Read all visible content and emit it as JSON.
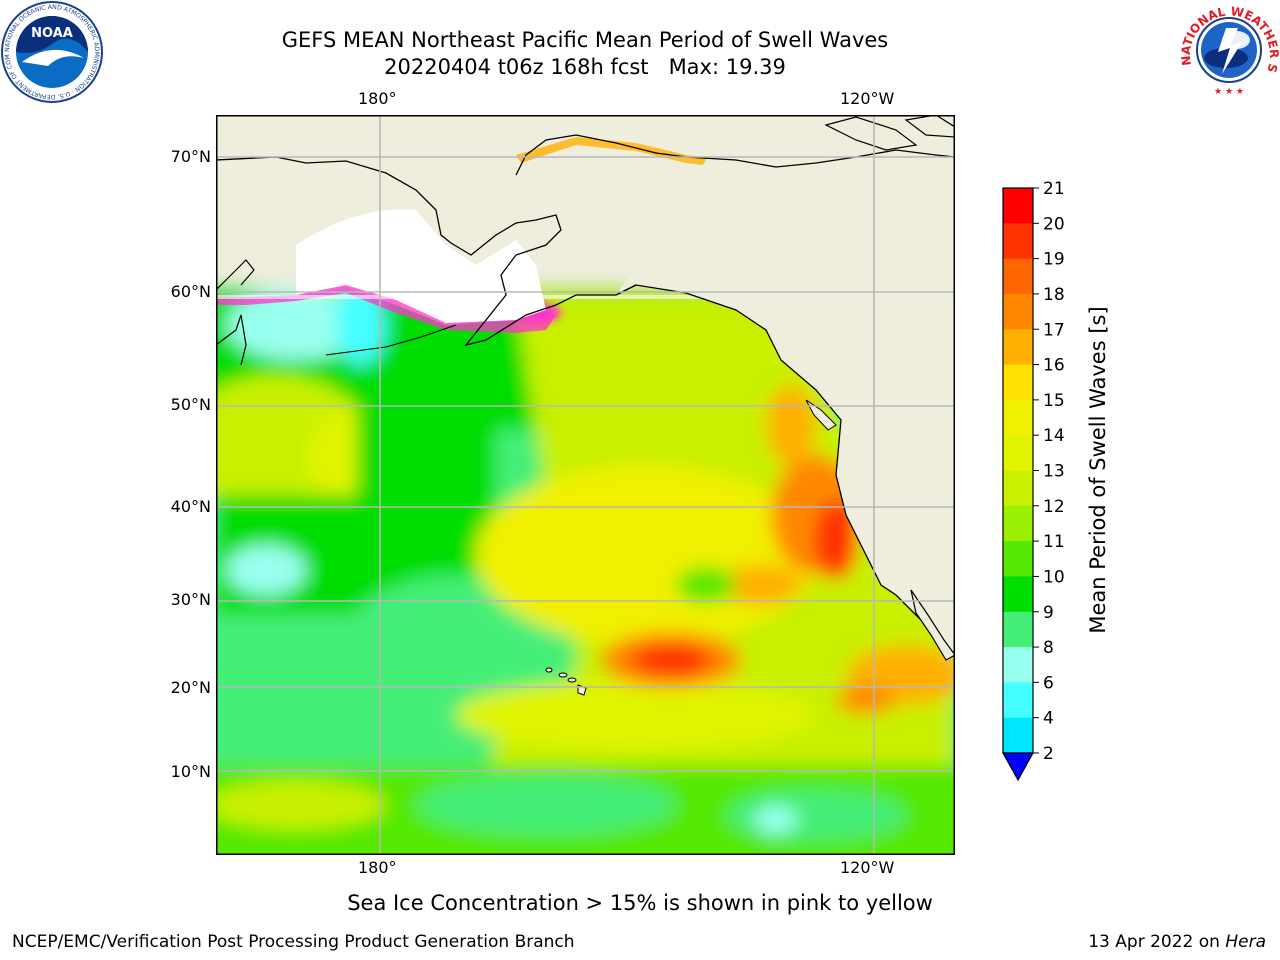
{
  "header": {
    "title_line1": "GEFS MEAN Northeast Pacific Mean Period of Swell Waves",
    "title_line2": "20220404 t06z 168h fcst   Max: 19.39"
  },
  "map": {
    "lon_ticks_top": [
      "180°",
      "120°W"
    ],
    "lon_ticks_bottom": [
      "180°",
      "120°W"
    ],
    "lat_ticks": [
      "70°N",
      "60°N",
      "50°N",
      "40°N",
      "30°N",
      "20°N",
      "10°N"
    ],
    "colors": {
      "land": "#efeddc",
      "grid": "#b8b8b8",
      "coast": "#000000"
    }
  },
  "colorbar": {
    "label": "Mean Period of Swell Waves [s]",
    "ticks": [
      "21",
      "20",
      "19",
      "18",
      "17",
      "16",
      "15",
      "14",
      "13",
      "12",
      "11",
      "10",
      "9",
      "8",
      "6",
      "4",
      "2"
    ],
    "colors": [
      "#ff0000",
      "#ff3300",
      "#ff6600",
      "#ff8800",
      "#ffb000",
      "#ffe000",
      "#f0f000",
      "#e0f400",
      "#c8f000",
      "#99f000",
      "#55e800",
      "#00dd00",
      "#44ee77",
      "#99ffee",
      "#44ffff",
      "#00e8ff",
      "#00a8ff",
      "#0055ff",
      "#0000ff"
    ]
  },
  "footer": {
    "note": "Sea Ice Concentration > 15% is shown in pink to yellow",
    "left": "NCEP/EMC/Verification Post Processing Product Generation Branch",
    "date": "13 Apr 2022 on",
    "machine": "Hera"
  },
  "logos": {
    "noaa": {
      "name": "NOAA",
      "ring_text": "NATIONAL OCEANIC AND ATMOSPHERIC ADMINISTRATION · U.S. DEPARTMENT OF COMMERCE"
    },
    "nws": {
      "ring_text": "NATIONAL WEATHER SERVICE"
    }
  }
}
